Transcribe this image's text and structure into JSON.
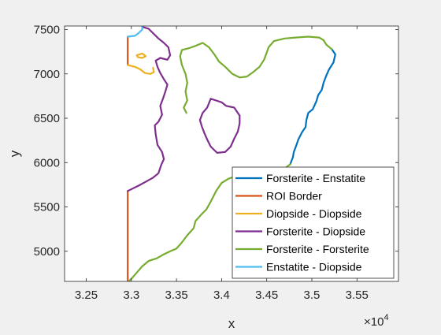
{
  "chart_data": {
    "type": "line",
    "title": "",
    "xlabel": "x",
    "ylabel": "y",
    "x_exponent_label": "×10",
    "x_exponent_power": "4",
    "xlim": [
      32260,
      35960
    ],
    "ylim": [
      4660,
      7540
    ],
    "x_ticks": [
      32500,
      33000,
      33500,
      34000,
      34500,
      35000,
      35500
    ],
    "x_tick_labels": [
      "3.25",
      "3.3",
      "3.35",
      "3.4",
      "3.45",
      "3.5",
      "3.55"
    ],
    "y_ticks": [
      5000,
      5500,
      6000,
      6500,
      7000,
      7500
    ],
    "y_tick_labels": [
      "5000",
      "5500",
      "6000",
      "6500",
      "7000",
      "7500"
    ],
    "grid": false,
    "legend_position": "bottom-right",
    "series": [
      {
        "name": "Forsterite - Enstatite",
        "color": "#0072BD",
        "segments": [
          [
            [
              35220,
              7280
            ],
            [
              35260,
              7220
            ],
            [
              35240,
              7130
            ],
            [
              35190,
              7050
            ],
            [
              35160,
              6980
            ],
            [
              35130,
              6900
            ],
            [
              35110,
              6820
            ],
            [
              35070,
              6760
            ],
            [
              35050,
              6690
            ],
            [
              35010,
              6600
            ],
            [
              34960,
              6560
            ],
            [
              34940,
              6480
            ],
            [
              34930,
              6400
            ],
            [
              34890,
              6340
            ],
            [
              34850,
              6260
            ],
            [
              34830,
              6200
            ],
            [
              34800,
              6120
            ],
            [
              34790,
              6060
            ],
            [
              34760,
              5980
            ]
          ]
        ]
      },
      {
        "name": "ROI Border",
        "color": "#D95319",
        "segments": [
          [
            [
              32960,
              7420
            ],
            [
              32960,
              7100
            ]
          ],
          [
            [
              32960,
              5680
            ],
            [
              32960,
              4670
            ]
          ]
        ]
      },
      {
        "name": "Diopside - Diopside",
        "color": "#EDB120",
        "segments": [
          [
            [
              32960,
              7100
            ],
            [
              33040,
              7080
            ],
            [
              33100,
              7050
            ],
            [
              33150,
              7010
            ],
            [
              33210,
              7000
            ],
            [
              33250,
              7020
            ],
            [
              33240,
              7070
            ]
          ],
          [
            [
              33060,
              7210
            ],
            [
              33120,
              7230
            ],
            [
              33160,
              7200
            ],
            [
              33120,
              7180
            ],
            [
              33070,
              7190
            ],
            [
              33060,
              7210
            ]
          ]
        ]
      },
      {
        "name": "Forsterite - Diopside",
        "color": "#7E2F8E",
        "segments": [
          [
            [
              33120,
              7530
            ],
            [
              33190,
              7510
            ],
            [
              33240,
              7460
            ],
            [
              33300,
              7400
            ],
            [
              33360,
              7350
            ],
            [
              33410,
              7300
            ],
            [
              33430,
              7210
            ],
            [
              33400,
              7160
            ],
            [
              33320,
              7180
            ],
            [
              33270,
              7150
            ],
            [
              33290,
              7080
            ],
            [
              33320,
              7010
            ],
            [
              33360,
              6940
            ],
            [
              33400,
              6880
            ],
            [
              33380,
              6810
            ],
            [
              33350,
              6720
            ],
            [
              33320,
              6640
            ],
            [
              33340,
              6540
            ],
            [
              33300,
              6460
            ],
            [
              33260,
              6420
            ],
            [
              33270,
              6320
            ],
            [
              33290,
              6200
            ],
            [
              33340,
              6120
            ],
            [
              33360,
              6040
            ],
            [
              33330,
              5970
            ],
            [
              33300,
              5880
            ],
            [
              33240,
              5830
            ],
            [
              33170,
              5790
            ],
            [
              33080,
              5740
            ],
            [
              32960,
              5680
            ]
          ],
          [
            [
              33880,
              6720
            ],
            [
              33940,
              6700
            ],
            [
              34000,
              6680
            ],
            [
              34050,
              6640
            ],
            [
              34140,
              6620
            ],
            [
              34200,
              6530
            ],
            [
              34200,
              6440
            ],
            [
              34180,
              6350
            ],
            [
              34140,
              6270
            ],
            [
              34100,
              6180
            ],
            [
              34040,
              6120
            ],
            [
              33950,
              6110
            ],
            [
              33880,
              6180
            ],
            [
              33840,
              6260
            ],
            [
              33810,
              6330
            ],
            [
              33780,
              6410
            ],
            [
              33760,
              6480
            ],
            [
              33790,
              6560
            ],
            [
              33840,
              6620
            ],
            [
              33880,
              6720
            ]
          ]
        ]
      },
      {
        "name": "Forsterite - Forsterite",
        "color": "#77AC30",
        "segments": [
          [
            [
              33560,
              7270
            ],
            [
              33640,
              7290
            ],
            [
              33720,
              7320
            ],
            [
              33790,
              7350
            ],
            [
              33860,
              7300
            ],
            [
              33920,
              7220
            ],
            [
              33970,
              7140
            ],
            [
              34040,
              7080
            ],
            [
              34120,
              7000
            ],
            [
              34200,
              6960
            ],
            [
              34280,
              6970
            ],
            [
              34350,
              7020
            ],
            [
              34420,
              7080
            ],
            [
              34470,
              7160
            ],
            [
              34500,
              7240
            ],
            [
              34520,
              7300
            ],
            [
              34580,
              7370
            ],
            [
              34700,
              7400
            ],
            [
              34820,
              7410
            ],
            [
              34960,
              7420
            ],
            [
              35080,
              7410
            ],
            [
              35130,
              7380
            ],
            [
              35160,
              7330
            ],
            [
              35220,
              7280
            ]
          ],
          [
            [
              33560,
              7270
            ],
            [
              33540,
              7200
            ],
            [
              33560,
              7100
            ],
            [
              33600,
              7000
            ],
            [
              33620,
              6900
            ],
            [
              33600,
              6800
            ],
            [
              33620,
              6700
            ],
            [
              33580,
              6620
            ],
            [
              33610,
              6560
            ]
          ],
          [
            [
              34760,
              5980
            ],
            [
              34680,
              5920
            ],
            [
              34560,
              5880
            ],
            [
              34420,
              5870
            ],
            [
              34300,
              5880
            ],
            [
              34200,
              5860
            ],
            [
              34080,
              5820
            ],
            [
              34000,
              5770
            ],
            [
              33940,
              5680
            ],
            [
              33880,
              5560
            ],
            [
              33830,
              5470
            ],
            [
              33780,
              5420
            ],
            [
              33710,
              5340
            ],
            [
              33690,
              5260
            ],
            [
              33620,
              5180
            ],
            [
              33560,
              5100
            ],
            [
              33500,
              5030
            ],
            [
              33430,
              5000
            ],
            [
              33350,
              4960
            ],
            [
              33280,
              4920
            ],
            [
              33190,
              4890
            ],
            [
              33120,
              4830
            ],
            [
              33060,
              4760
            ],
            [
              33010,
              4700
            ],
            [
              32980,
              4670
            ]
          ]
        ]
      },
      {
        "name": "Enstatite - Diopside",
        "color": "#4DBEEE",
        "segments": [
          [
            [
              32960,
              7420
            ],
            [
              33040,
              7430
            ],
            [
              33080,
              7460
            ],
            [
              33120,
              7500
            ],
            [
              33120,
              7530
            ]
          ]
        ]
      }
    ]
  }
}
